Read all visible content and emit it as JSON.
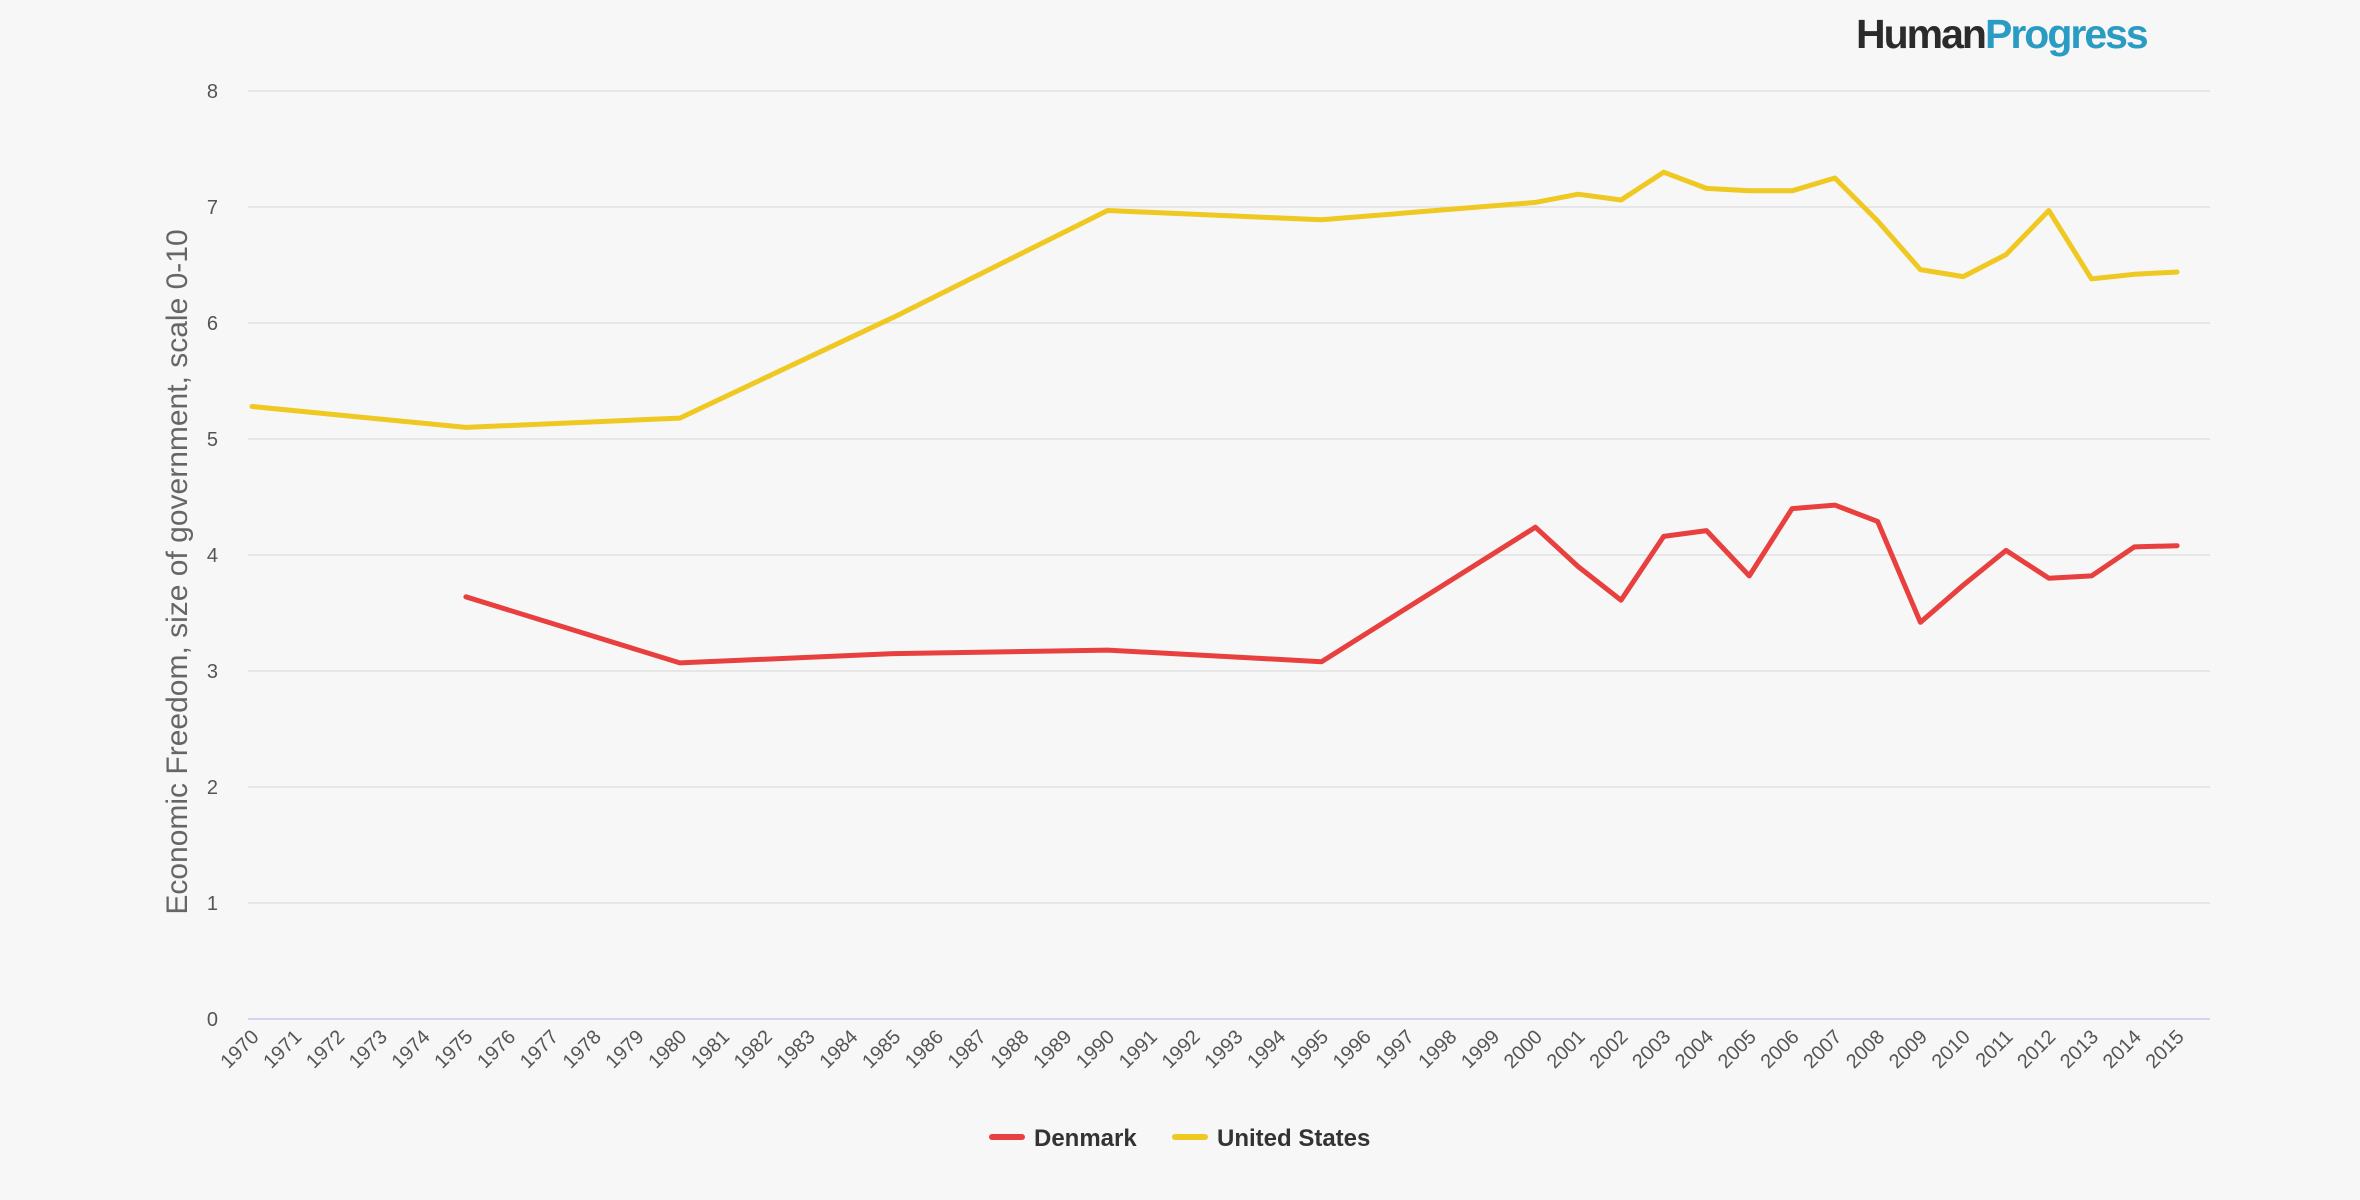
{
  "logo": {
    "part1": "Human",
    "part2": "Progress",
    "color1": "#2b2b2b",
    "color2": "#2a9cc4"
  },
  "chart_data": {
    "type": "line",
    "ylabel": "Economic Freedom, size of government, scale 0-10",
    "xlabel": "",
    "ylim": [
      0,
      8
    ],
    "yticks": [
      0,
      1,
      2,
      3,
      4,
      5,
      6,
      7,
      8
    ],
    "x": [
      "1970",
      "1971",
      "1972",
      "1973",
      "1974",
      "1975",
      "1976",
      "1977",
      "1978",
      "1979",
      "1980",
      "1981",
      "1982",
      "1983",
      "1984",
      "1985",
      "1986",
      "1987",
      "1988",
      "1989",
      "1990",
      "1991",
      "1992",
      "1993",
      "1994",
      "1995",
      "1996",
      "1997",
      "1998",
      "1999",
      "2000",
      "2001",
      "2002",
      "2003",
      "2004",
      "2005",
      "2006",
      "2007",
      "2008",
      "2009",
      "2010",
      "2011",
      "2012",
      "2013",
      "2014",
      "2015"
    ],
    "grid": true,
    "legend_position": "bottom-center",
    "series": [
      {
        "name": "Denmark",
        "color": "#e8403e",
        "points": [
          {
            "x": "1975",
            "y": 3.64
          },
          {
            "x": "1980",
            "y": 3.07
          },
          {
            "x": "1985",
            "y": 3.15
          },
          {
            "x": "1990",
            "y": 3.18
          },
          {
            "x": "1995",
            "y": 3.08
          },
          {
            "x": "2000",
            "y": 4.24
          },
          {
            "x": "2001",
            "y": 3.9
          },
          {
            "x": "2002",
            "y": 3.61
          },
          {
            "x": "2003",
            "y": 4.16
          },
          {
            "x": "2004",
            "y": 4.21
          },
          {
            "x": "2005",
            "y": 3.82
          },
          {
            "x": "2006",
            "y": 4.4
          },
          {
            "x": "2007",
            "y": 4.43
          },
          {
            "x": "2008",
            "y": 4.29
          },
          {
            "x": "2009",
            "y": 3.42
          },
          {
            "x": "2010",
            "y": 3.74
          },
          {
            "x": "2011",
            "y": 4.04
          },
          {
            "x": "2012",
            "y": 3.8
          },
          {
            "x": "2013",
            "y": 3.82
          },
          {
            "x": "2014",
            "y": 4.07
          },
          {
            "x": "2015",
            "y": 4.08
          }
        ]
      },
      {
        "name": "United States",
        "color": "#efc822",
        "points": [
          {
            "x": "1970",
            "y": 5.28
          },
          {
            "x": "1975",
            "y": 5.1
          },
          {
            "x": "1980",
            "y": 5.18
          },
          {
            "x": "1985",
            "y": 6.05
          },
          {
            "x": "1990",
            "y": 6.97
          },
          {
            "x": "1995",
            "y": 6.89
          },
          {
            "x": "2000",
            "y": 7.04
          },
          {
            "x": "2001",
            "y": 7.11
          },
          {
            "x": "2002",
            "y": 7.06
          },
          {
            "x": "2003",
            "y": 7.3
          },
          {
            "x": "2004",
            "y": 7.16
          },
          {
            "x": "2005",
            "y": 7.14
          },
          {
            "x": "2006",
            "y": 7.14
          },
          {
            "x": "2007",
            "y": 7.25
          },
          {
            "x": "2008",
            "y": 6.88
          },
          {
            "x": "2009",
            "y": 6.46
          },
          {
            "x": "2010",
            "y": 6.4
          },
          {
            "x": "2011",
            "y": 6.59
          },
          {
            "x": "2012",
            "y": 6.97
          },
          {
            "x": "2013",
            "y": 6.38
          },
          {
            "x": "2014",
            "y": 6.42
          },
          {
            "x": "2015",
            "y": 6.44
          }
        ]
      }
    ]
  }
}
